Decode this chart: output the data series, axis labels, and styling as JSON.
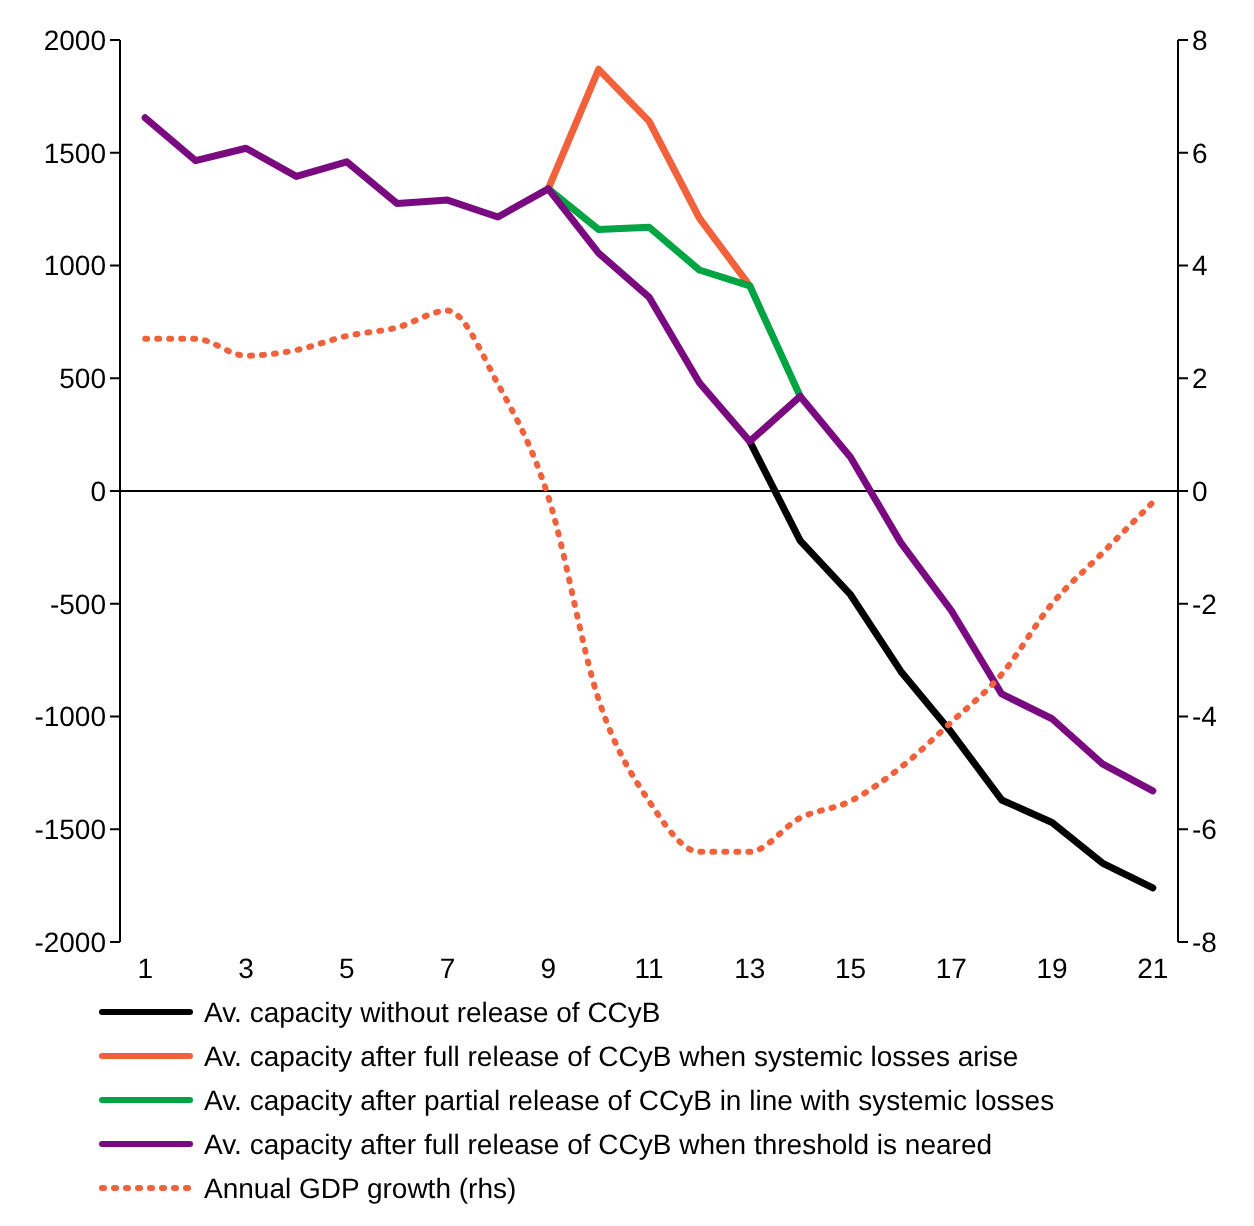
{
  "chart_data": {
    "type": "line",
    "x": [
      1,
      2,
      3,
      4,
      5,
      6,
      7,
      8,
      9,
      10,
      11,
      12,
      13,
      14,
      15,
      16,
      17,
      18,
      19,
      20,
      21
    ],
    "xlim": [
      0.5,
      21.5
    ],
    "xticks": [
      1,
      3,
      5,
      7,
      9,
      11,
      13,
      15,
      17,
      19,
      21
    ],
    "ylim": [
      -2000,
      2000
    ],
    "yticks": [
      -2000,
      -1500,
      -1000,
      -500,
      0,
      500,
      1000,
      1500,
      2000
    ],
    "y2lim": [
      -8,
      8
    ],
    "y2ticks": [
      -8,
      -6,
      -4,
      -2,
      0,
      2,
      4,
      6,
      8
    ],
    "grid": false,
    "legend": "bottom",
    "marker": "none",
    "ref_lines": [
      {
        "axis": "y",
        "value": 0,
        "color": "#000000"
      }
    ],
    "series": [
      {
        "name": "Av. capacity without release of CCyB",
        "color": "#000000",
        "line_style": "solid",
        "values": [
          null,
          null,
          null,
          null,
          null,
          null,
          null,
          null,
          null,
          null,
          null,
          null,
          220,
          -220,
          -460,
          -800,
          -1070,
          -1370,
          -1470,
          -1650,
          -1760
        ]
      },
      {
        "name": "Av. capacity after full release of CCyB when systemic losses arise",
        "color": "#f0613c",
        "line_style": "solid",
        "values": [
          null,
          null,
          null,
          null,
          null,
          null,
          null,
          null,
          1340,
          1870,
          1640,
          1210,
          910,
          null,
          null,
          null,
          null,
          null,
          null,
          null,
          null
        ]
      },
      {
        "name": "Av. capacity after partial release of CCyB in line with systemic losses",
        "color": "#00a443",
        "line_style": "solid",
        "values": [
          null,
          null,
          null,
          null,
          null,
          null,
          null,
          null,
          1340,
          1160,
          1170,
          980,
          910,
          420,
          null,
          null,
          null,
          null,
          null,
          null,
          null
        ]
      },
      {
        "name": "Av. capacity after full release of CCyB when threshold is neared",
        "color": "#7a0a80",
        "line_style": "solid",
        "values": [
          1655,
          1465,
          1520,
          1395,
          1460,
          1275,
          1290,
          1215,
          1340,
          1055,
          860,
          480,
          220,
          420,
          150,
          -230,
          -530,
          -900,
          -1010,
          -1210,
          -1330
        ]
      },
      {
        "name": "Annual GDP growth (rhs)",
        "color": "#f0613c",
        "line_style": "dotted",
        "axis": "y2",
        "values": [
          2.7,
          2.7,
          2.4,
          2.5,
          2.75,
          2.9,
          3.2,
          1.9,
          -0.1,
          -3.7,
          -5.5,
          -6.4,
          -6.4,
          -5.8,
          -5.5,
          -4.9,
          -4.1,
          -3.25,
          -2.0,
          -1.1,
          -0.2
        ]
      }
    ]
  }
}
